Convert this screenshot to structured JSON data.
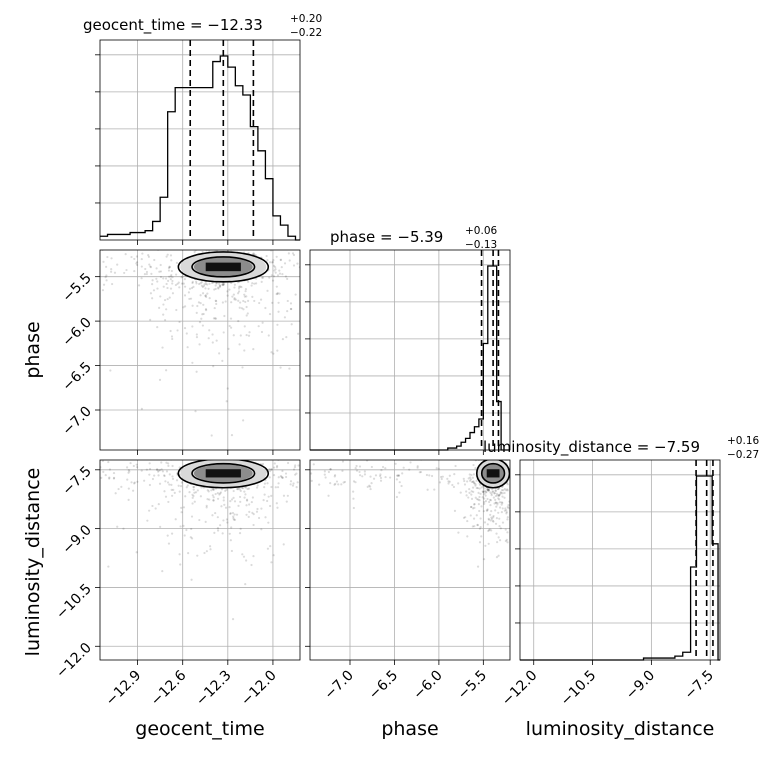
{
  "chart_data": {
    "type": "corner",
    "parameters": [
      {
        "name": "geocent_time",
        "axis_label": "geocent_time",
        "title": {
          "prefix": "geocent_time = ",
          "value": "−12.33",
          "plus": "+0.20",
          "minus": "−0.22"
        },
        "ticks": [
          "−12.9",
          "−12.6",
          "−12.3",
          "−12.0"
        ],
        "range": [
          -13.15,
          -11.82
        ],
        "quantiles": [
          -12.55,
          -12.33,
          -12.13
        ],
        "hist": {
          "bin_edges": [
            -13.15,
            -13.1,
            -13.05,
            -13.0,
            -12.95,
            -12.9,
            -12.85,
            -12.8,
            -12.75,
            -12.7,
            -12.65,
            -12.6,
            -12.55,
            -12.5,
            -12.45,
            -12.4,
            -12.35,
            -12.3,
            -12.25,
            -12.2,
            -12.15,
            -12.1,
            -12.05,
            -12.0,
            -11.95,
            -11.9,
            -11.85,
            -11.82
          ],
          "counts": [
            0.02,
            0.03,
            0.03,
            0.03,
            0.04,
            0.04,
            0.05,
            0.1,
            0.23,
            0.69,
            0.82,
            0.82,
            0.82,
            0.82,
            0.82,
            0.96,
            0.99,
            0.93,
            0.83,
            0.78,
            0.61,
            0.48,
            0.33,
            0.13,
            0.08,
            0.02,
            0.0
          ]
        }
      },
      {
        "name": "phase",
        "axis_label": "phase",
        "title": {
          "prefix": "phase = ",
          "value": "−5.39",
          "plus": "+0.06",
          "minus": "−0.13"
        },
        "ticks": [
          "−7.0",
          "−6.5",
          "−6.0",
          "−5.5"
        ],
        "range": [
          -7.45,
          -5.2
        ],
        "quantiles": [
          -5.52,
          -5.39,
          -5.33
        ],
        "hist": {
          "bin_edges": [
            -7.45,
            -5.9,
            -5.8,
            -5.75,
            -5.7,
            -5.65,
            -5.6,
            -5.55,
            -5.5,
            -5.45,
            -5.4,
            -5.35,
            -5.3,
            -5.25,
            -5.2
          ],
          "counts": [
            0.0,
            0.01,
            0.02,
            0.04,
            0.06,
            0.09,
            0.12,
            0.16,
            0.55,
            0.95,
            0.95,
            0.25,
            0.0,
            0.0
          ]
        }
      },
      {
        "name": "luminosity_distance",
        "axis_label": "luminosity_distance",
        "title": {
          "prefix": "luminosity_distance = ",
          "value": "−7.59",
          "plus": "+0.16",
          "minus": "−0.27"
        },
        "ticks": [
          "−12.0",
          "−10.5",
          "−9.0",
          "−7.5"
        ],
        "range": [
          -12.35,
          -7.25
        ],
        "quantiles": [
          -7.86,
          -7.59,
          -7.43
        ],
        "hist": {
          "bin_edges": [
            -12.35,
            -9.2,
            -9.0,
            -8.8,
            -8.6,
            -8.4,
            -8.2,
            -8.0,
            -7.85,
            -7.65,
            -7.45,
            -7.3,
            -7.25
          ],
          "counts": [
            0.0,
            0.01,
            0.01,
            0.01,
            0.01,
            0.02,
            0.04,
            0.48,
            0.95,
            0.95,
            0.6,
            0.0
          ]
        }
      }
    ],
    "y_labels": {
      "phase": [
        "−5.5",
        "−6.0",
        "−6.5",
        "−7.0"
      ],
      "luminosity_distance": [
        "−7.5",
        "−9.0",
        "−10.5",
        "−12.0"
      ]
    },
    "grid": true
  }
}
